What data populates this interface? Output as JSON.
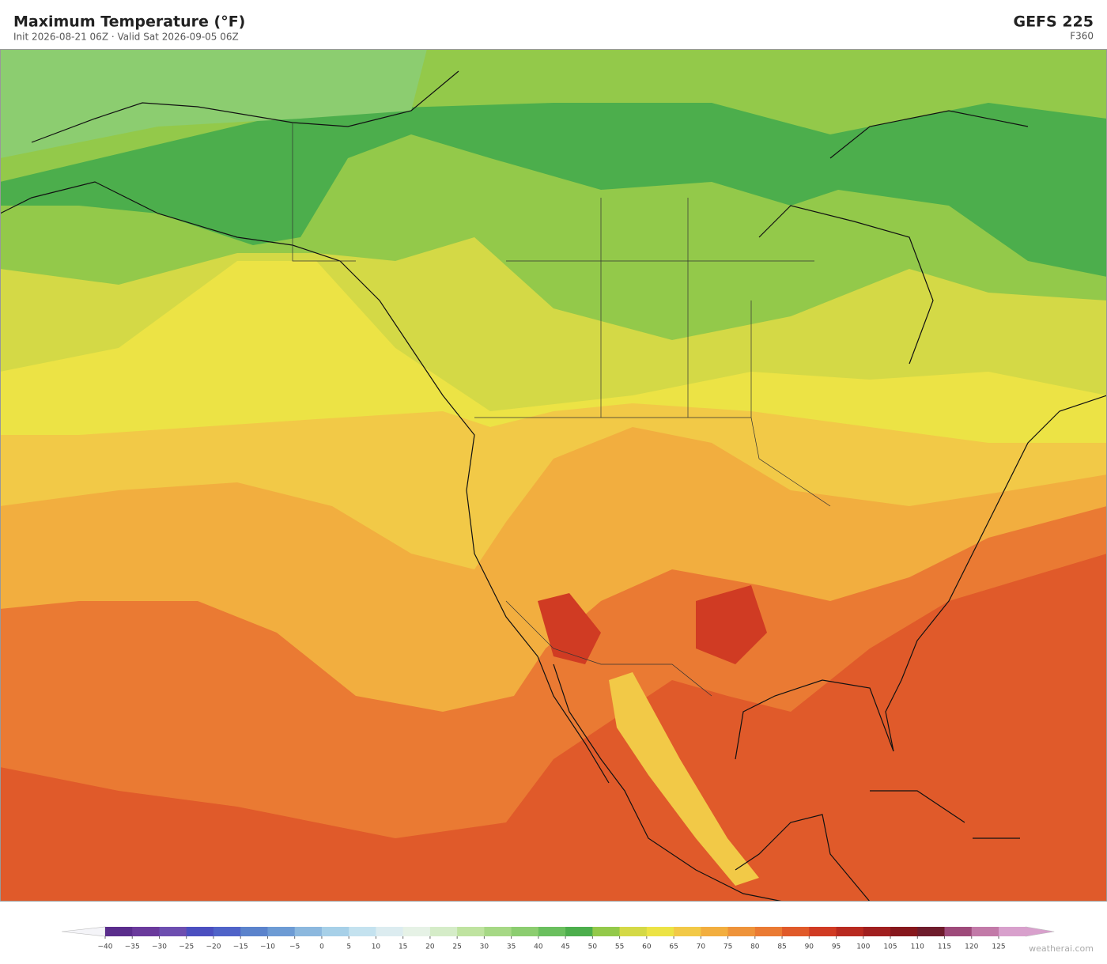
{
  "header": {
    "title": "Maximum Temperature  (°F)",
    "subtitle": "Init 2026-08-21 06Z  ·  Valid Sat 2026-09-05 06Z",
    "model": "GEFS  225",
    "forecast_hour": "F360"
  },
  "colorbar": {
    "ticks": [
      {
        "value": -40,
        "label": "−40"
      },
      {
        "value": -35,
        "label": "−35"
      },
      {
        "value": -30,
        "label": "−30"
      },
      {
        "value": -25,
        "label": "−25"
      },
      {
        "value": -20,
        "label": "−20"
      },
      {
        "value": -15,
        "label": "−15"
      },
      {
        "value": -10,
        "label": "−10"
      },
      {
        "value": -5,
        "label": "−5"
      },
      0,
      5,
      10,
      15,
      20,
      25,
      30,
      35,
      40,
      45,
      50,
      55,
      60,
      65,
      70,
      75,
      80,
      85,
      90,
      95,
      100,
      105,
      110,
      115,
      120,
      125
    ],
    "colors": [
      "#5a2d8c",
      "#6a3a9c",
      "#6d4eb0",
      "#4b4fc0",
      "#4f63c8",
      "#5b83cc",
      "#6d9bd4",
      "#8cb8de",
      "#a7d0e8",
      "#c4e2ef",
      "#dcecf0",
      "#e6f2e6",
      "#d5ecc8",
      "#bfe3a0",
      "#a6d885",
      "#8ccd70",
      "#6abf5e",
      "#4cae4c",
      "#93c94a",
      "#d4d946",
      "#ece345",
      "#f2c947",
      "#f2ae3f",
      "#ee933a",
      "#ea7a33",
      "#e05a2a",
      "#d03b23",
      "#b82a20",
      "#a01f1f",
      "#86171c",
      "#6e1c2c",
      "#9e4a7a",
      "#c27aa8",
      "#d8a0cc"
    ]
  },
  "footer": {
    "credit": "weatherai.com"
  }
}
